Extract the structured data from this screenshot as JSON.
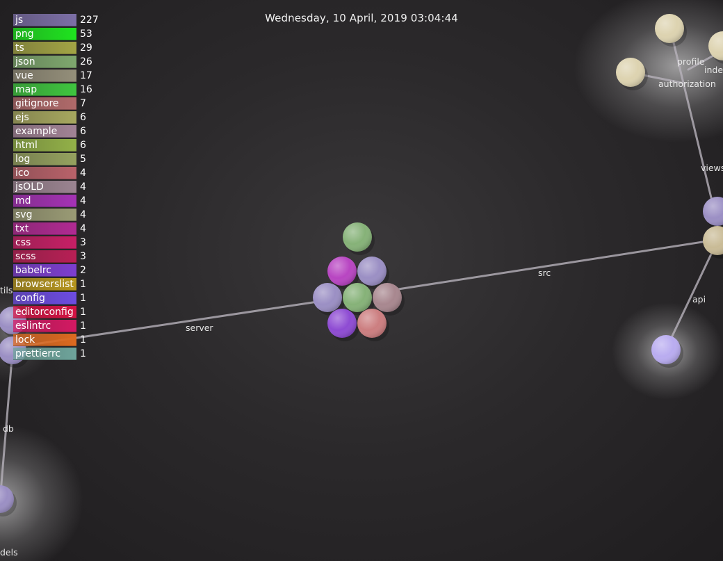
{
  "timestamp": "Wednesday, 10 April, 2019 03:04:44",
  "legend": [
    {
      "ext": "js",
      "count": "227",
      "color": "#7c6fa6"
    },
    {
      "ext": "png",
      "count": "53",
      "color": "#1fe41f"
    },
    {
      "ext": "ts",
      "count": "29",
      "color": "#a3a545"
    },
    {
      "ext": "json",
      "count": "26",
      "color": "#7fa86e"
    },
    {
      "ext": "vue",
      "count": "17",
      "color": "#948f7a"
    },
    {
      "ext": "map",
      "count": "16",
      "color": "#3fc63f"
    },
    {
      "ext": "gitignore",
      "count": "7",
      "color": "#b06a6a"
    },
    {
      "ext": "ejs",
      "count": "6",
      "color": "#a7a85f"
    },
    {
      "ext": "example",
      "count": "6",
      "color": "#a28396"
    },
    {
      "ext": "html",
      "count": "6",
      "color": "#93b148"
    },
    {
      "ext": "log",
      "count": "5",
      "color": "#95a25f"
    },
    {
      "ext": "ico",
      "count": "4",
      "color": "#b9626a"
    },
    {
      "ext": "jsOLD",
      "count": "4",
      "color": "#9b8491"
    },
    {
      "ext": "md",
      "count": "4",
      "color": "#a532b5"
    },
    {
      "ext": "svg",
      "count": "4",
      "color": "#9a9b75"
    },
    {
      "ext": "txt",
      "count": "4",
      "color": "#b12a93"
    },
    {
      "ext": "css",
      "count": "3",
      "color": "#c81f66"
    },
    {
      "ext": "scss",
      "count": "3",
      "color": "#b81f55"
    },
    {
      "ext": "babelrc",
      "count": "2",
      "color": "#7d3ed0"
    },
    {
      "ext": "browserslist",
      "count": "1",
      "color": "#b6961e"
    },
    {
      "ext": "config",
      "count": "1",
      "color": "#6d4ce2"
    },
    {
      "ext": "editorconfig",
      "count": "1",
      "color": "#d51344"
    },
    {
      "ext": "eslintrc",
      "count": "1",
      "color": "#d41963"
    },
    {
      "ext": "lock",
      "count": "1",
      "color": "#dd6a20"
    },
    {
      "ext": "prettierrc",
      "count": "1",
      "color": "#6ea49b"
    }
  ],
  "directories": {
    "server": "server",
    "src": "src",
    "api": "api",
    "views": "views",
    "profile": "profile",
    "authorization": "authorization",
    "index": "inde",
    "db": "db",
    "utils": "tils",
    "models": "dels"
  },
  "node_colors": {
    "green": "#86b278",
    "magenta": "#b845c2",
    "lavender": "#9b8fc4",
    "mauve": "#a8878f",
    "purple": "#8e4bd3",
    "rose": "#cc7e80",
    "cream": "#ddd3b0",
    "tan": "#c9bb96",
    "lilac": "#b9acf0"
  }
}
